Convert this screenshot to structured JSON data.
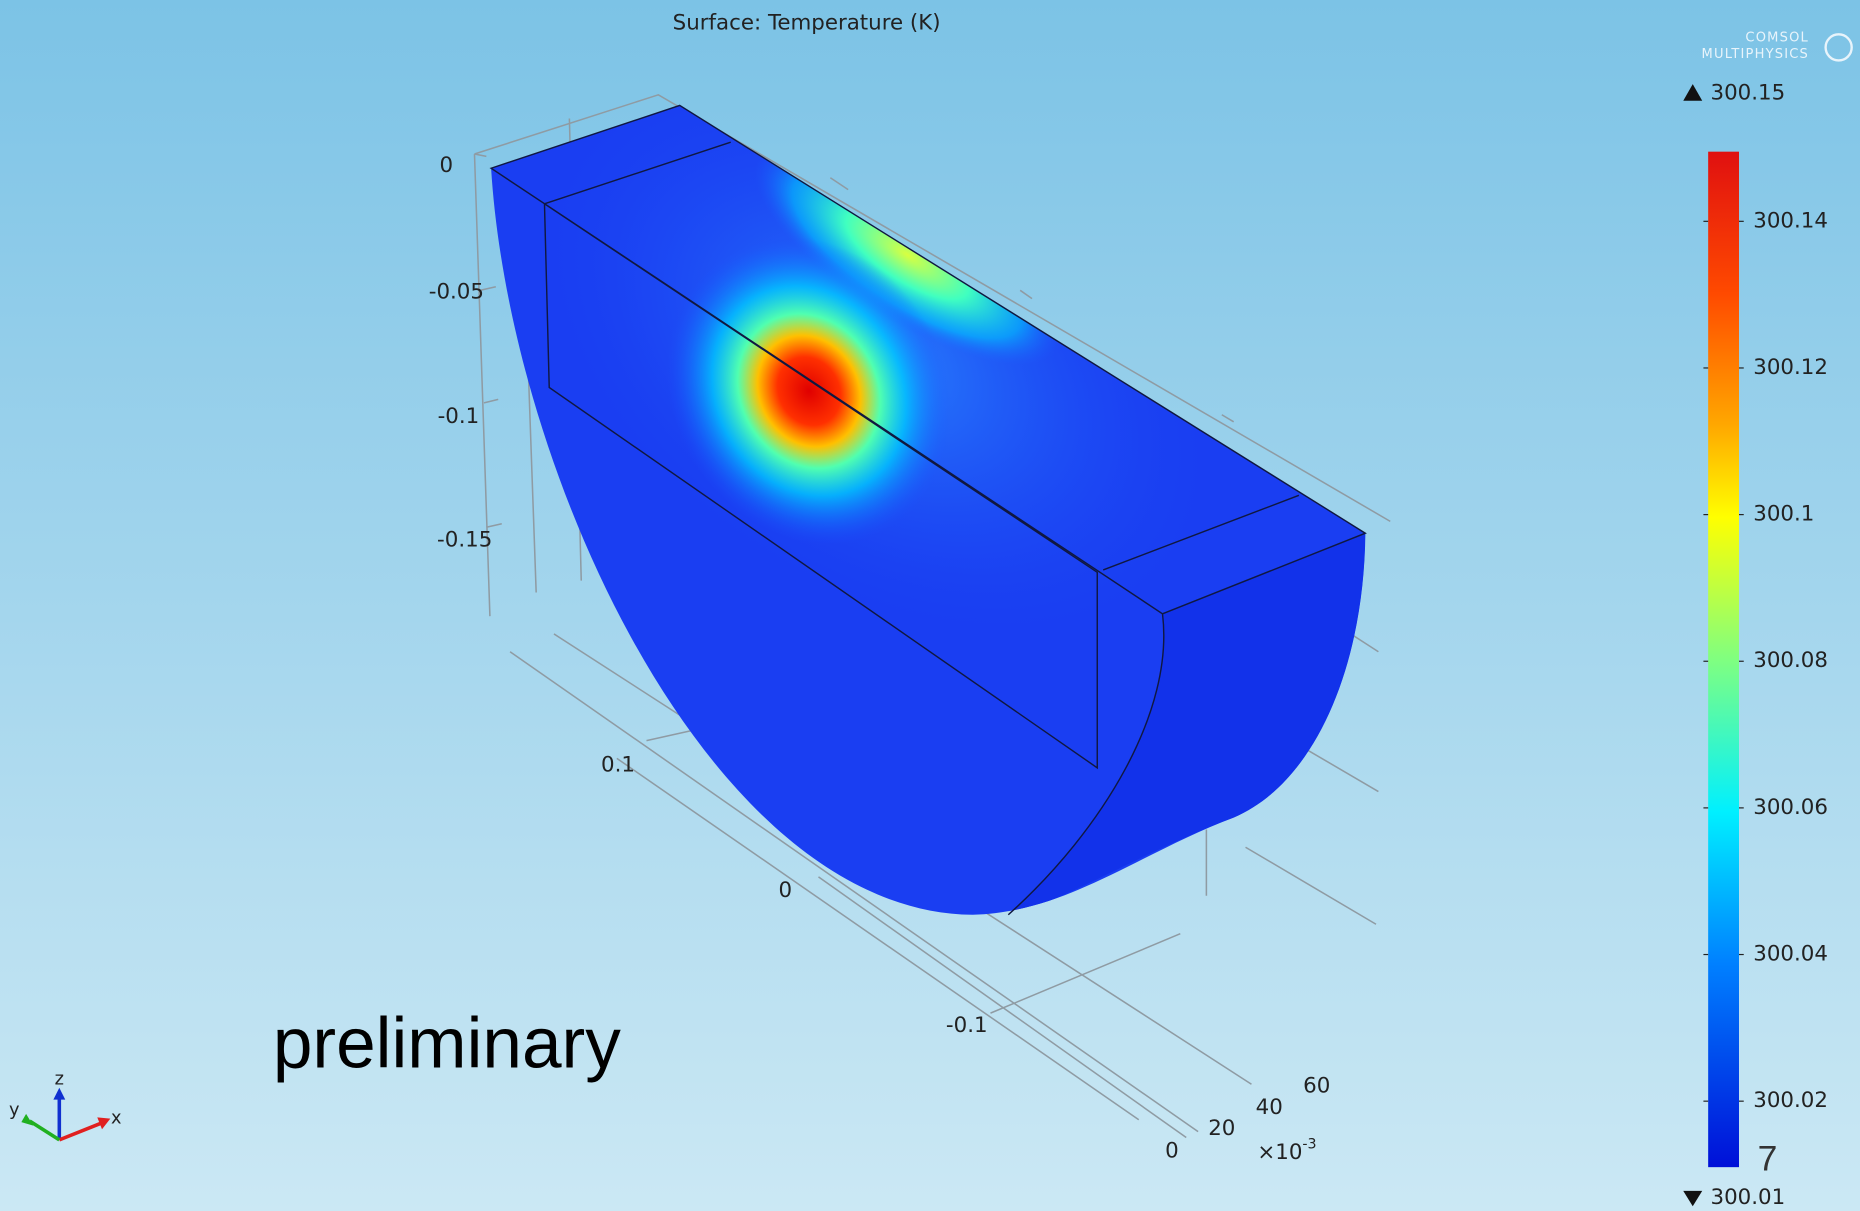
{
  "plot": {
    "title": "Surface: Temperature (K)",
    "watermark": [
      "COMSOL",
      "MULTIPHYSICS"
    ],
    "z_ticks": [
      "0",
      "-0.05",
      "-0.1",
      "-0.15"
    ],
    "y_ticks": [
      "0.1",
      "0",
      "-0.1"
    ],
    "x_ticks": [
      "0",
      "20",
      "40",
      "60"
    ],
    "x_multiplier": {
      "base": "×10",
      "exponent": "-3"
    },
    "triad": {
      "x": "x",
      "y": "y",
      "z": "z"
    }
  },
  "colorbar": {
    "max_label": "300.15",
    "min_label": "300.01",
    "lim": [
      300.011,
      300.1495
    ],
    "ticks": [
      300.02,
      300.04,
      300.06,
      300.08,
      300.1,
      300.12,
      300.14
    ]
  },
  "overlay": {
    "note": "preliminary",
    "page_number": "7"
  }
}
